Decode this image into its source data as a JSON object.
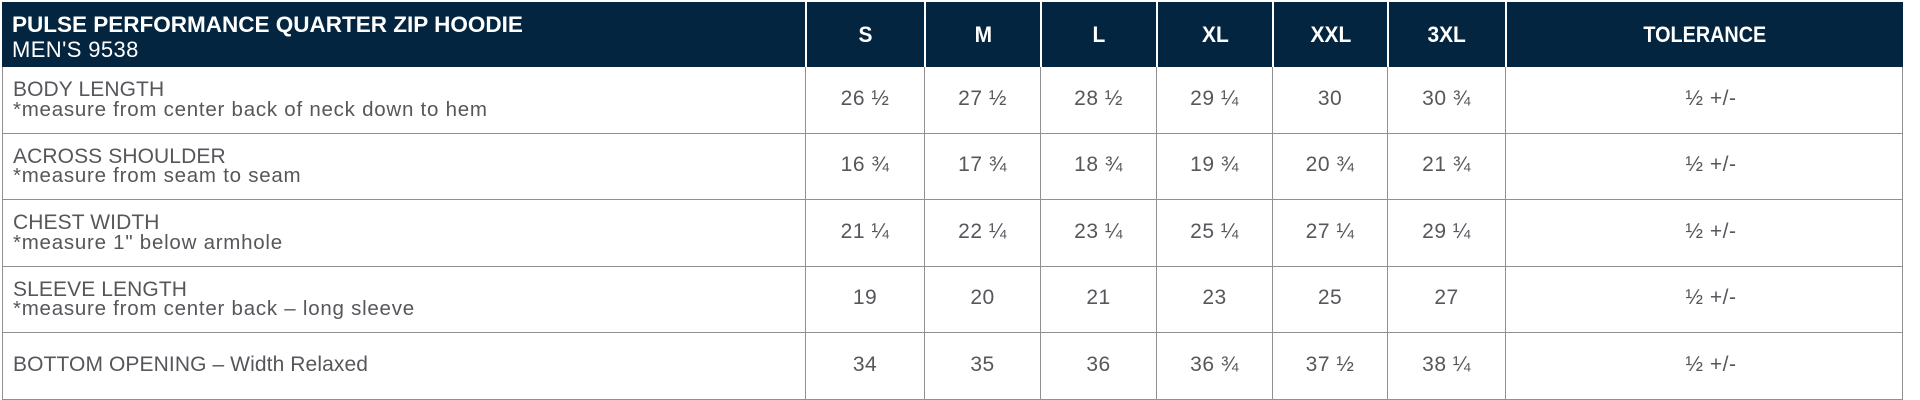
{
  "header": {
    "product_title": "PULSE PERFORMANCE QUARTER ZIP HOODIE",
    "product_subtitle": "MEN'S 9538",
    "size_columns": [
      "S",
      "M",
      "L",
      "XL",
      "XXL",
      "3XL"
    ],
    "tolerance_label": "TOLERANCE"
  },
  "rows": [
    {
      "label": "BODY LENGTH",
      "note": "*measure from center back of neck down to hem",
      "values": [
        "26 ½",
        "27 ½",
        "28 ½",
        "29 ¼",
        "30",
        "30 ¾"
      ],
      "tolerance": "½ +/-"
    },
    {
      "label": "ACROSS SHOULDER",
      "note": "*measure from seam to seam",
      "values": [
        "16 ¾",
        "17 ¾",
        "18 ¾",
        "19 ¾",
        "20 ¾",
        "21 ¾"
      ],
      "tolerance": "½ +/-"
    },
    {
      "label": "CHEST WIDTH",
      "note": "*measure 1\" below armhole",
      "values": [
        "21 ¼",
        "22 ¼",
        "23 ¼",
        "25 ¼",
        "27 ¼",
        "29 ¼"
      ],
      "tolerance": "½ +/-"
    },
    {
      "label": "SLEEVE LENGTH",
      "note": "*measure from center back – long sleeve",
      "values": [
        "19",
        "20",
        "21",
        "23",
        "25",
        "27"
      ],
      "tolerance": "½ +/-"
    },
    {
      "label": "BOTTOM OPENING – Width Relaxed",
      "note": "",
      "values": [
        "34",
        "35",
        "36",
        "36 ¾",
        "37 ½",
        "38 ¼"
      ],
      "tolerance": "½ +/-"
    }
  ],
  "colors": {
    "header_bg": "#04253f",
    "header_text": "#ffffff",
    "body_text": "#55575b",
    "border": "#8e9093"
  }
}
